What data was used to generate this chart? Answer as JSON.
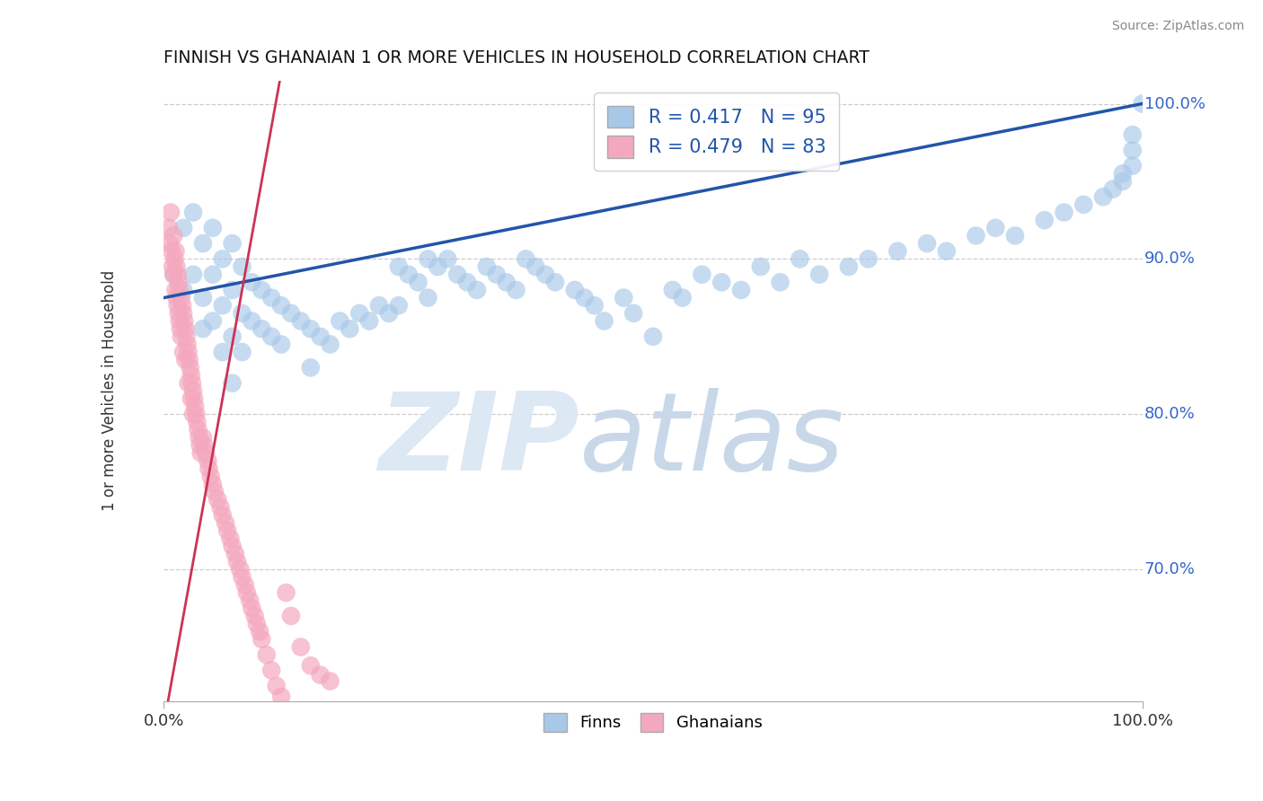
{
  "title": "FINNISH VS GHANAIAN 1 OR MORE VEHICLES IN HOUSEHOLD CORRELATION CHART",
  "source": "Source: ZipAtlas.com",
  "ylabel": "1 or more Vehicles in Household",
  "xlim": [
    0.0,
    1.0
  ],
  "ylim": [
    0.615,
    1.015
  ],
  "ytick_values": [
    0.7,
    0.8,
    0.9,
    1.0
  ],
  "ytick_labels": [
    "70.0%",
    "80.0%",
    "90.0%",
    "100.0%"
  ],
  "legend_R_finn": "0.417",
  "legend_N_finn": "95",
  "legend_R_ghana": "0.479",
  "legend_N_ghana": "83",
  "finn_color": "#a8c8e8",
  "ghana_color": "#f4a8be",
  "finn_line_color": "#2255aa",
  "ghana_line_color": "#cc3355",
  "legend_text_color": "#2255aa",
  "finn_seed": 77,
  "ghana_seed": 33,
  "watermark_zip_color": "#dce8f4",
  "watermark_atlas_color": "#c8d8e8",
  "finn_scatter_x": [
    0.01,
    0.02,
    0.02,
    0.03,
    0.03,
    0.04,
    0.04,
    0.04,
    0.05,
    0.05,
    0.05,
    0.06,
    0.06,
    0.06,
    0.07,
    0.07,
    0.07,
    0.07,
    0.08,
    0.08,
    0.08,
    0.09,
    0.09,
    0.1,
    0.1,
    0.11,
    0.11,
    0.12,
    0.12,
    0.13,
    0.14,
    0.15,
    0.15,
    0.16,
    0.17,
    0.18,
    0.19,
    0.2,
    0.21,
    0.22,
    0.23,
    0.24,
    0.24,
    0.25,
    0.26,
    0.27,
    0.27,
    0.28,
    0.29,
    0.3,
    0.31,
    0.32,
    0.33,
    0.34,
    0.35,
    0.36,
    0.37,
    0.38,
    0.39,
    0.4,
    0.42,
    0.43,
    0.44,
    0.45,
    0.47,
    0.48,
    0.5,
    0.52,
    0.53,
    0.55,
    0.57,
    0.59,
    0.61,
    0.63,
    0.65,
    0.67,
    0.7,
    0.72,
    0.75,
    0.78,
    0.8,
    0.83,
    0.85,
    0.87,
    0.9,
    0.92,
    0.94,
    0.96,
    0.97,
    0.98,
    0.98,
    0.99,
    0.99,
    0.99,
    1.0
  ],
  "finn_scatter_y": [
    0.89,
    0.92,
    0.88,
    0.93,
    0.89,
    0.91,
    0.875,
    0.855,
    0.92,
    0.89,
    0.86,
    0.9,
    0.87,
    0.84,
    0.91,
    0.88,
    0.85,
    0.82,
    0.895,
    0.865,
    0.84,
    0.885,
    0.86,
    0.88,
    0.855,
    0.875,
    0.85,
    0.87,
    0.845,
    0.865,
    0.86,
    0.855,
    0.83,
    0.85,
    0.845,
    0.86,
    0.855,
    0.865,
    0.86,
    0.87,
    0.865,
    0.895,
    0.87,
    0.89,
    0.885,
    0.9,
    0.875,
    0.895,
    0.9,
    0.89,
    0.885,
    0.88,
    0.895,
    0.89,
    0.885,
    0.88,
    0.9,
    0.895,
    0.89,
    0.885,
    0.88,
    0.875,
    0.87,
    0.86,
    0.875,
    0.865,
    0.85,
    0.88,
    0.875,
    0.89,
    0.885,
    0.88,
    0.895,
    0.885,
    0.9,
    0.89,
    0.895,
    0.9,
    0.905,
    0.91,
    0.905,
    0.915,
    0.92,
    0.915,
    0.925,
    0.93,
    0.935,
    0.94,
    0.945,
    0.95,
    0.955,
    0.96,
    0.97,
    0.98,
    1.0
  ],
  "ghana_scatter_x": [
    0.005,
    0.006,
    0.007,
    0.008,
    0.009,
    0.01,
    0.01,
    0.011,
    0.012,
    0.012,
    0.013,
    0.013,
    0.014,
    0.014,
    0.015,
    0.015,
    0.016,
    0.016,
    0.017,
    0.018,
    0.018,
    0.019,
    0.02,
    0.02,
    0.021,
    0.022,
    0.022,
    0.023,
    0.024,
    0.025,
    0.025,
    0.026,
    0.027,
    0.028,
    0.028,
    0.029,
    0.03,
    0.03,
    0.031,
    0.032,
    0.033,
    0.034,
    0.035,
    0.036,
    0.037,
    0.038,
    0.04,
    0.041,
    0.043,
    0.045,
    0.046,
    0.048,
    0.05,
    0.052,
    0.055,
    0.058,
    0.06,
    0.063,
    0.065,
    0.068,
    0.07,
    0.073,
    0.075,
    0.078,
    0.08,
    0.083,
    0.085,
    0.088,
    0.09,
    0.093,
    0.095,
    0.098,
    0.1,
    0.105,
    0.11,
    0.115,
    0.12,
    0.125,
    0.13,
    0.14,
    0.15,
    0.16,
    0.17
  ],
  "ghana_scatter_y": [
    0.92,
    0.91,
    0.93,
    0.905,
    0.895,
    0.915,
    0.89,
    0.9,
    0.88,
    0.905,
    0.875,
    0.895,
    0.87,
    0.89,
    0.865,
    0.885,
    0.86,
    0.88,
    0.855,
    0.875,
    0.85,
    0.87,
    0.865,
    0.84,
    0.86,
    0.855,
    0.835,
    0.85,
    0.845,
    0.84,
    0.82,
    0.835,
    0.83,
    0.825,
    0.81,
    0.82,
    0.815,
    0.8,
    0.81,
    0.805,
    0.8,
    0.795,
    0.79,
    0.785,
    0.78,
    0.775,
    0.785,
    0.78,
    0.775,
    0.77,
    0.765,
    0.76,
    0.755,
    0.75,
    0.745,
    0.74,
    0.735,
    0.73,
    0.725,
    0.72,
    0.715,
    0.71,
    0.705,
    0.7,
    0.695,
    0.69,
    0.685,
    0.68,
    0.675,
    0.67,
    0.665,
    0.66,
    0.655,
    0.645,
    0.635,
    0.625,
    0.618,
    0.685,
    0.67,
    0.65,
    0.638,
    0.632,
    0.628
  ]
}
